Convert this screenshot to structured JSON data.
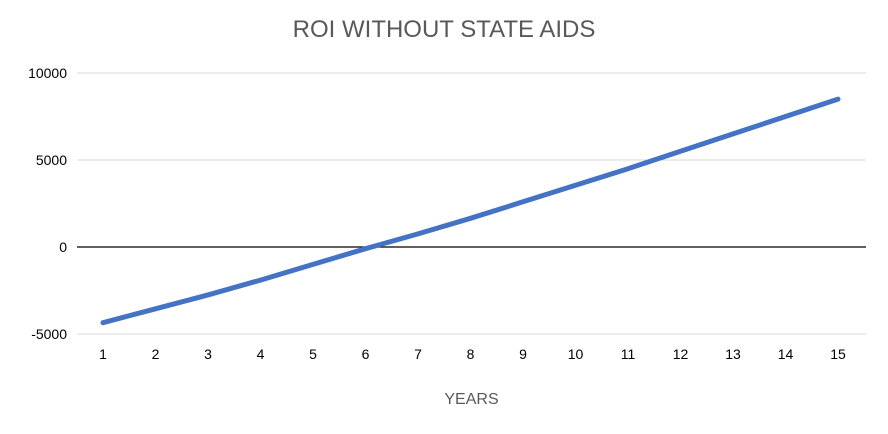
{
  "chart_data": {
    "type": "line",
    "title": "ROI WITHOUT STATE AIDS",
    "xlabel": "YEARS",
    "ylabel": "",
    "categories": [
      "1",
      "2",
      "3",
      "4",
      "5",
      "6",
      "7",
      "8",
      "9",
      "10",
      "11",
      "12",
      "13",
      "14",
      "15"
    ],
    "ylim": [
      -5000,
      10000
    ],
    "yticks": [
      -5000,
      0,
      5000,
      10000
    ],
    "ytick_labels": [
      "-5000",
      "0",
      "5000",
      "10000"
    ],
    "grid": true,
    "legend": "none",
    "series": [
      {
        "values": [
          -4350,
          -3550,
          -2750,
          -1900,
          -1000,
          -100,
          750,
          1650,
          2600,
          3550,
          4500,
          5500,
          6500,
          7500,
          8500
        ],
        "color": "#4472C4"
      }
    ],
    "colors": {
      "grid": "#d9d9d9",
      "zero_line": "#000000",
      "title": "#595959"
    }
  }
}
